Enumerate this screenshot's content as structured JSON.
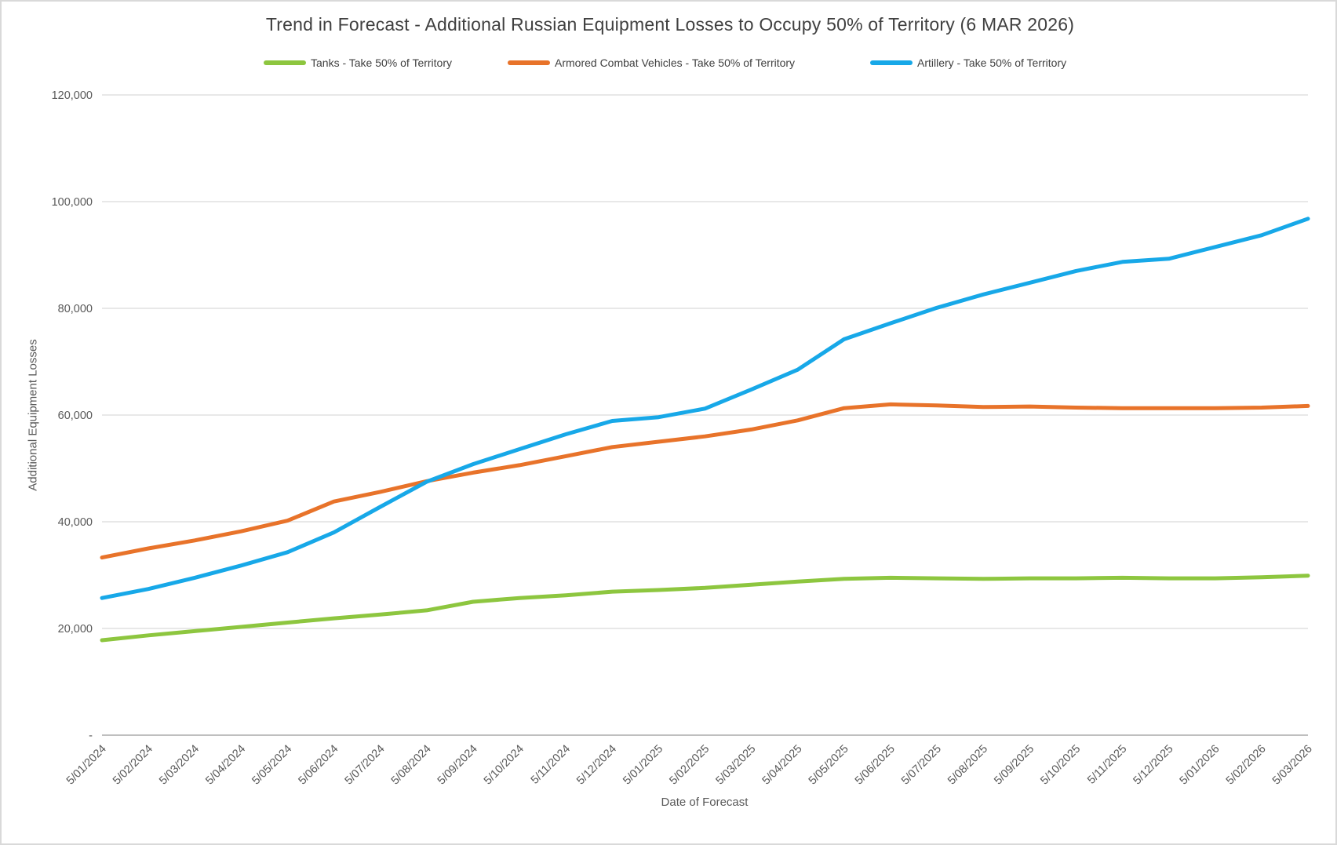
{
  "chart_data": {
    "type": "line",
    "title": "Trend in Forecast - Additional Russian Equipment Losses to Occupy 50% of Territory (6 MAR 2026)",
    "xlabel": "Date of Forecast",
    "ylabel": "Additional Equipment Losses",
    "ylim": [
      0,
      120000
    ],
    "grid": true,
    "legend_position": "top",
    "y_ticks": [
      {
        "value": 120000,
        "label": "120,000"
      },
      {
        "value": 100000,
        "label": "100,000"
      },
      {
        "value": 80000,
        "label": "80,000"
      },
      {
        "value": 60000,
        "label": "60,000"
      },
      {
        "value": 40000,
        "label": "40,000"
      },
      {
        "value": 20000,
        "label": "20,000"
      },
      {
        "value": 0,
        "label": "-"
      }
    ],
    "categories": [
      "5/01/2024",
      "5/02/2024",
      "5/03/2024",
      "5/04/2024",
      "5/05/2024",
      "5/06/2024",
      "5/07/2024",
      "5/08/2024",
      "5/09/2024",
      "5/10/2024",
      "5/11/2024",
      "5/12/2024",
      "5/01/2025",
      "5/02/2025",
      "5/03/2025",
      "5/04/2025",
      "5/05/2025",
      "5/06/2025",
      "5/07/2025",
      "5/08/2025",
      "5/09/2025",
      "5/10/2025",
      "5/11/2025",
      "5/12/2025",
      "5/01/2026",
      "5/02/2026",
      "5/03/2026"
    ],
    "series": [
      {
        "name": "Tanks - Take 50% of Territory",
        "color": "#8DC63F",
        "values": [
          17800,
          18700,
          19500,
          20300,
          21100,
          21900,
          22600,
          23400,
          25000,
          25700,
          26200,
          26900,
          27200,
          27600,
          28200,
          28800,
          29300,
          29500,
          29400,
          29300,
          29400,
          29400,
          29500,
          29400,
          29400,
          29600,
          29900
        ]
      },
      {
        "name": "Armored Combat Vehicles - Take 50% of Territory",
        "color": "#E8732A",
        "values": [
          33300,
          35000,
          36500,
          38200,
          40200,
          43800,
          45600,
          47600,
          49200,
          50600,
          52300,
          54000,
          55000,
          56000,
          57300,
          59000,
          61300,
          62000,
          61800,
          61500,
          61600,
          61400,
          61300,
          61300,
          61300,
          61400,
          61700
        ]
      },
      {
        "name": "Artillery - Take 50% of Territory",
        "color": "#17A8E8",
        "values": [
          25700,
          27400,
          29500,
          31800,
          34300,
          38000,
          42800,
          47500,
          50800,
          53600,
          56400,
          58900,
          59600,
          61200,
          64800,
          68500,
          74200,
          77200,
          80100,
          82600,
          84800,
          87000,
          88700,
          89300,
          91500,
          93700,
          96800
        ]
      }
    ]
  }
}
